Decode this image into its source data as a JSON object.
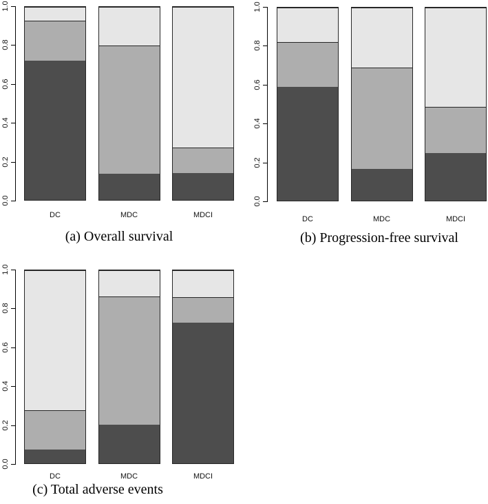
{
  "figure": {
    "background": "#ffffff",
    "description_colors": {
      "segment_dark": "#4D4D4D",
      "segment_medium": "#AEAEAE",
      "segment_light": "#E6E6E6",
      "axis": "#000000"
    }
  },
  "chart_data": [
    {
      "type": "bar",
      "stacked": true,
      "title": "(a) Overall survival",
      "categories": [
        "DC",
        "MDC",
        "MDCI"
      ],
      "series": [
        {
          "name": "segment-dark",
          "color": "#4D4D4D",
          "values": [
            0.72,
            0.135,
            0.14
          ]
        },
        {
          "name": "segment-medium",
          "color": "#AEAEAE",
          "values": [
            0.21,
            0.665,
            0.13
          ]
        },
        {
          "name": "segment-light",
          "color": "#E6E6E6",
          "values": [
            0.07,
            0.2,
            0.73
          ]
        }
      ],
      "xlabel": "",
      "ylabel": "",
      "ylim": [
        0,
        1
      ],
      "yticks": [
        "0.0",
        "0.2",
        "0.4",
        "0.6",
        "0.8",
        "1.0"
      ],
      "grid": false,
      "legend": null
    },
    {
      "type": "bar",
      "stacked": true,
      "title": "(b) Progression-free survival",
      "categories": [
        "DC",
        "MDC",
        "MDCI"
      ],
      "series": [
        {
          "name": "segment-dark",
          "color": "#4D4D4D",
          "values": [
            0.59,
            0.165,
            0.245
          ]
        },
        {
          "name": "segment-medium",
          "color": "#AEAEAE",
          "values": [
            0.23,
            0.525,
            0.24
          ]
        },
        {
          "name": "segment-light",
          "color": "#E6E6E6",
          "values": [
            0.18,
            0.31,
            0.515
          ]
        }
      ],
      "xlabel": "",
      "ylabel": "",
      "ylim": [
        0,
        1
      ],
      "yticks": [
        "0.0",
        "0.2",
        "0.4",
        "0.6",
        "0.8",
        "1.0"
      ],
      "grid": false,
      "legend": null
    },
    {
      "type": "bar",
      "stacked": true,
      "title": "(c) Total adverse events",
      "categories": [
        "DC",
        "MDC",
        "MDCI"
      ],
      "series": [
        {
          "name": "segment-dark",
          "color": "#4D4D4D",
          "values": [
            0.07,
            0.2,
            0.73
          ]
        },
        {
          "name": "segment-medium",
          "color": "#AEAEAE",
          "values": [
            0.205,
            0.665,
            0.13
          ]
        },
        {
          "name": "segment-light",
          "color": "#E6E6E6",
          "values": [
            0.725,
            0.135,
            0.14
          ]
        }
      ],
      "xlabel": "",
      "ylabel": "",
      "ylim": [
        0,
        1
      ],
      "yticks": [
        "0.0",
        "0.2",
        "0.4",
        "0.6",
        "0.8",
        "1.0"
      ],
      "grid": false,
      "legend": null
    }
  ]
}
